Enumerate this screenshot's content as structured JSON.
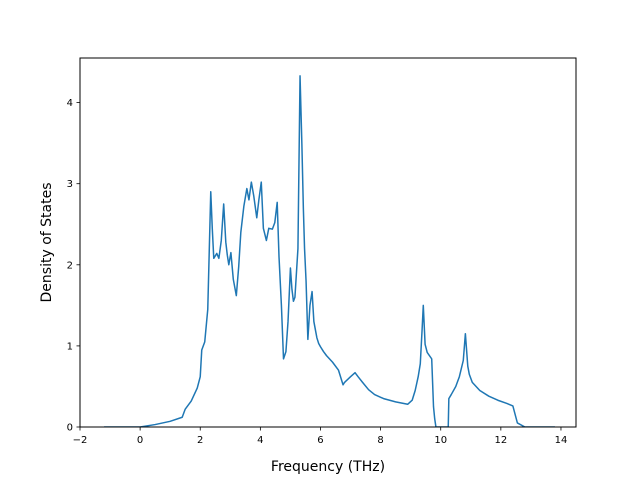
{
  "chart_data": {
    "type": "line",
    "title": "",
    "xlabel": "Frequency (THz)",
    "ylabel": "Density of States",
    "xlim": [
      -2,
      14.5
    ],
    "ylim": [
      0,
      4.55
    ],
    "xticks": [
      -2,
      0,
      2,
      4,
      6,
      8,
      10,
      12,
      14
    ],
    "yticks": [
      0,
      1,
      2,
      3,
      4
    ],
    "grid": false,
    "series": [
      {
        "color": "#1f77b4",
        "x": [
          -1.2,
          0.0,
          0.5,
          1.0,
          1.4,
          1.5,
          1.7,
          1.9,
          2.0,
          2.05,
          2.15,
          2.25,
          2.35,
          2.4,
          2.45,
          2.55,
          2.62,
          2.7,
          2.78,
          2.85,
          2.9,
          2.95,
          3.02,
          3.1,
          3.2,
          3.28,
          3.35,
          3.45,
          3.55,
          3.62,
          3.7,
          3.78,
          3.88,
          3.95,
          4.03,
          4.1,
          4.2,
          4.28,
          4.4,
          4.48,
          4.56,
          4.62,
          4.7,
          4.77,
          4.85,
          4.92,
          5.0,
          5.05,
          5.1,
          5.15,
          5.25,
          5.32,
          5.38,
          5.43,
          5.47,
          5.52,
          5.58,
          5.65,
          5.72,
          5.78,
          5.83,
          5.88,
          5.94,
          6.0,
          6.1,
          6.2,
          6.4,
          6.6,
          6.75,
          6.8,
          7.0,
          7.15,
          7.25,
          7.4,
          7.6,
          7.8,
          8.1,
          8.5,
          8.9,
          9.05,
          9.15,
          9.25,
          9.32,
          9.38,
          9.42,
          9.48,
          9.55,
          9.7,
          9.76,
          9.8,
          9.84,
          10.25,
          10.27,
          10.35,
          10.5,
          10.62,
          10.75,
          10.82,
          10.87,
          10.9,
          10.95,
          11.05,
          11.3,
          11.6,
          11.9,
          12.2,
          12.4,
          12.55,
          12.8,
          13.0,
          13.8
        ],
        "y": [
          0.0,
          0.0,
          0.03,
          0.07,
          0.12,
          0.22,
          0.32,
          0.48,
          0.62,
          0.95,
          1.05,
          1.45,
          2.9,
          2.45,
          2.08,
          2.14,
          2.08,
          2.3,
          2.75,
          2.28,
          2.12,
          2.0,
          2.15,
          1.82,
          1.62,
          1.98,
          2.4,
          2.72,
          2.94,
          2.8,
          3.02,
          2.85,
          2.58,
          2.8,
          3.02,
          2.45,
          2.3,
          2.45,
          2.44,
          2.52,
          2.77,
          2.1,
          1.5,
          0.84,
          0.93,
          1.3,
          1.96,
          1.7,
          1.55,
          1.6,
          2.2,
          4.33,
          3.5,
          2.7,
          2.2,
          1.8,
          1.08,
          1.5,
          1.67,
          1.3,
          1.2,
          1.1,
          1.03,
          0.99,
          0.93,
          0.88,
          0.8,
          0.7,
          0.52,
          0.55,
          0.62,
          0.67,
          0.62,
          0.55,
          0.46,
          0.4,
          0.35,
          0.31,
          0.28,
          0.33,
          0.45,
          0.62,
          0.78,
          1.2,
          1.5,
          1.02,
          0.92,
          0.84,
          0.25,
          0.1,
          0.0,
          0.0,
          0.35,
          0.4,
          0.5,
          0.62,
          0.82,
          1.15,
          0.9,
          0.75,
          0.65,
          0.55,
          0.45,
          0.38,
          0.33,
          0.29,
          0.26,
          0.05,
          0.0,
          0.0,
          0.0
        ]
      }
    ]
  }
}
